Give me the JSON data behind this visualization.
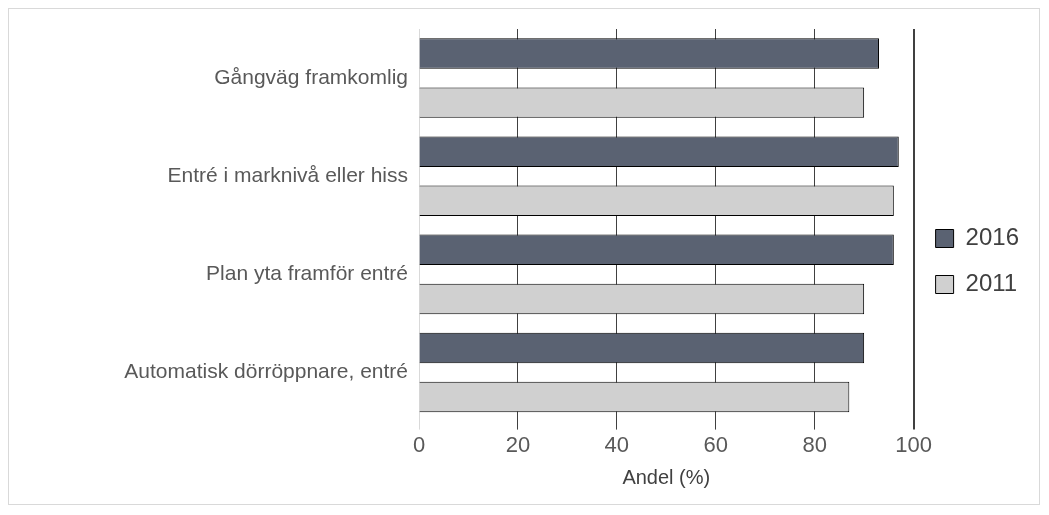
{
  "chart_data": {
    "type": "bar",
    "orientation": "horizontal",
    "xlabel": "Andel (%)",
    "categories": [
      "Gångväg framkomlig",
      "Entré i marknivå eller hiss",
      "Plan yta framför entré",
      "Automatisk dörröppnare, entré"
    ],
    "series": [
      {
        "name": "2016",
        "color": "#5a6272",
        "values": [
          93,
          97,
          96,
          90
        ]
      },
      {
        "name": "2011",
        "color": "#d0d0d0",
        "values": [
          90,
          96,
          90,
          87
        ]
      }
    ],
    "xlim": [
      0,
      100
    ],
    "xticks": [
      0,
      20,
      40,
      60,
      80,
      100
    ],
    "grid": "x",
    "legend": "right"
  }
}
